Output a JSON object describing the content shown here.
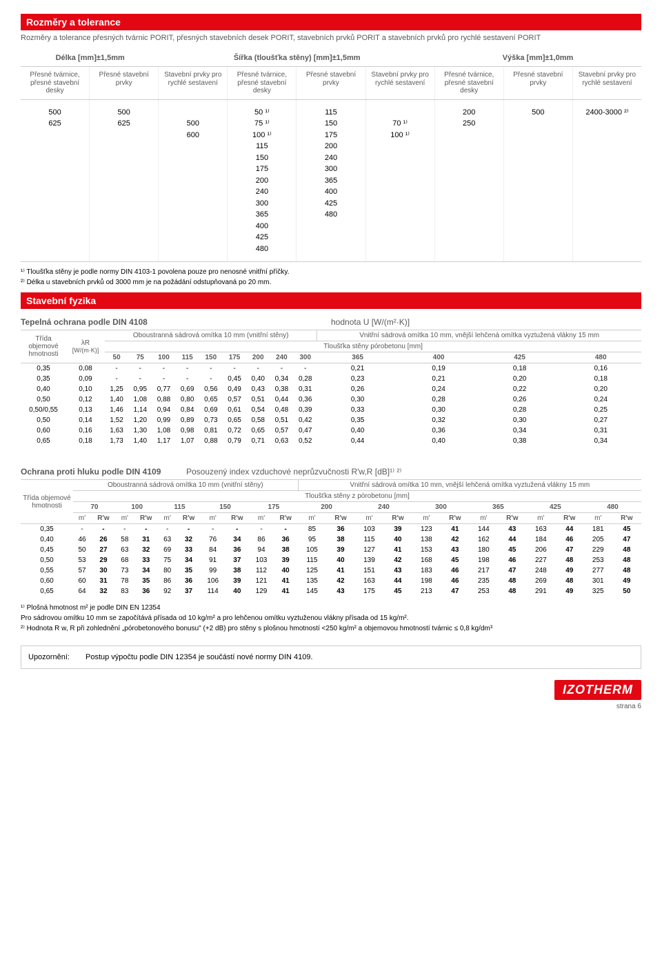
{
  "section1": {
    "title": "Rozměry a tolerance",
    "intro": "Rozměry a tolerance přesných tvárnic PORIT, přesných stavebních desek PORIT, stavebních prvků PORIT a stavebních prvků pro rychlé sestavení PORIT",
    "dim_headers": {
      "c0": "Délka\n[mm]±1,5mm",
      "c1": "Šířka (tloušťka stěny)\n[mm]±1,5mm",
      "c2": "Výška\n[mm]±1,0mm"
    },
    "sub_headers": [
      "Přesné tvár­nice, přesné stavební desky",
      "Přesné stavební prvky",
      "Stavební prvky pro rychlé sestavení",
      "Přesné tvár­nice, přesné stavební desky",
      "Přesné stavební prvky",
      "Stavební prvky pro rychlé sestavení",
      "Přesné tvár­nice, přesné stavební desky",
      "Přesné stavební prvky",
      "Stavební prvky pro rychlé sestavení"
    ],
    "data": {
      "c0": "500\n625",
      "c1": "500\n625",
      "c2": "\n500\n600",
      "c3": "50 ¹⁾\n75 ¹⁾\n100 ¹⁾\n115\n150\n175\n200\n240\n300\n365\n400\n425\n480",
      "c4": "115\n150\n175\n200\n240\n300\n365\n400\n425\n480",
      "c5": "\n70 ¹⁾\n100 ¹⁾",
      "c6": "200\n250",
      "c7": "500",
      "c8": "2400-3000 ²⁾"
    },
    "fn1": "¹⁾ Tloušťka stěny je podle normy DIN 4103-1 povolena pouze pro nenosné vnitřní příčky.",
    "fn2": "²⁾ Délka u stavebních prvků od 3000 mm je na požádání odstupňovaná po 20 mm."
  },
  "section2": {
    "title": "Stavební fyzika",
    "thermal_title": "Tepelná ochrana podle DIN 4108",
    "thermal_u": "hodnota U [W/(m²·K)]",
    "left_top": "Třída objemové hmotnosti",
    "lambda": "λR",
    "lambda_unit": "[W/(m·K)]",
    "th_sub1": "Oboustranná sádrová omítka 10 mm (vnitřní stěny)",
    "th_sub2": "Vnitřní sádrová omítka 10 mm, vnější lehčená omítka vyztužená vlákny 15 mm",
    "th_mid": "Tloušťka stěny pórobetonu  [mm]",
    "cols": [
      "50",
      "75",
      "100",
      "115",
      "150",
      "175",
      "200",
      "240",
      "300",
      "365",
      "400",
      "425",
      "480"
    ],
    "rows": [
      {
        "t": "0,35",
        "l": "0,08",
        "v": [
          "-",
          "-",
          "-",
          "-",
          "-",
          "-",
          "-",
          "-",
          "-",
          "0,21",
          "0,19",
          "0,18",
          "0,16"
        ]
      },
      {
        "t": "0,35",
        "l": "0,09",
        "v": [
          "-",
          "-",
          "-",
          "-",
          "-",
          "0,45",
          "0,40",
          "0,34",
          "0,28",
          "0,23",
          "0,21",
          "0,20",
          "0,18"
        ]
      },
      {
        "t": "0,40",
        "l": "0,10",
        "v": [
          "1,25",
          "0,95",
          "0,77",
          "0,69",
          "0,56",
          "0,49",
          "0,43",
          "0,38",
          "0,31",
          "0,26",
          "0,24",
          "0,22",
          "0,20"
        ]
      },
      {
        "t": "0,50",
        "l": "0,12",
        "v": [
          "1,40",
          "1,08",
          "0,88",
          "0,80",
          "0,65",
          "0,57",
          "0,51",
          "0,44",
          "0,36",
          "0,30",
          "0,28",
          "0,26",
          "0,24"
        ]
      },
      {
        "t": "0,50/0,55",
        "l": "0,13",
        "v": [
          "1,46",
          "1,14",
          "0,94",
          "0,84",
          "0,69",
          "0,61",
          "0,54",
          "0,48",
          "0,39",
          "0,33",
          "0,30",
          "0,28",
          "0,25"
        ]
      },
      {
        "t": "0,50",
        "l": "0,14",
        "v": [
          "1,52",
          "1,20",
          "0,99",
          "0,89",
          "0,73",
          "0,65",
          "0,58",
          "0,51",
          "0,42",
          "0,35",
          "0,32",
          "0,30",
          "0,27"
        ]
      },
      {
        "t": "0,60",
        "l": "0,16",
        "v": [
          "1,63",
          "1,30",
          "1,08",
          "0,98",
          "0,81",
          "0,72",
          "0,65",
          "0,57",
          "0,47",
          "0,40",
          "0,36",
          "0,34",
          "0,31"
        ]
      },
      {
        "t": "0,65",
        "l": "0,18",
        "v": [
          "1,73",
          "1,40",
          "1,17",
          "1,07",
          "0,88",
          "0,79",
          "0,71",
          "0,63",
          "0,52",
          "0,44",
          "0,40",
          "0,38",
          "0,34"
        ]
      }
    ]
  },
  "section3": {
    "sound_title": "Ochrana proti hluku podle DIN 4109",
    "sound_index": "Posouzený index vzduchové neprůzvučnosti R'w,R [dB]¹⁾ ²⁾",
    "sub1": "Oboustranná sádrová omítka 10 mm (vnitřní stěny)",
    "sub2": "Vnitřní sádrová omítka 10 mm, vnější lehčená omítka vyztužená vlákny 15 mm",
    "mid": "Tloušťka stěny z pórobetonu  [mm]",
    "left": "Třída objemové hmotnosti",
    "cols": [
      "70",
      "100",
      "115",
      "150",
      "175",
      "200",
      "240",
      "300",
      "365",
      "425",
      "480"
    ],
    "mr": "m'",
    "rw": "R'w",
    "rows": [
      {
        "t": "0,35",
        "v": [
          "-",
          "-",
          "-",
          "-",
          "-",
          "-",
          "-",
          "-",
          "-",
          "-",
          "85",
          "36",
          "103",
          "39",
          "123",
          "41",
          "144",
          "43",
          "163",
          "44",
          "181",
          "45"
        ]
      },
      {
        "t": "0,40",
        "v": [
          "46",
          "26",
          "58",
          "31",
          "63",
          "32",
          "76",
          "34",
          "86",
          "36",
          "95",
          "38",
          "115",
          "40",
          "138",
          "42",
          "162",
          "44",
          "184",
          "46",
          "205",
          "47"
        ]
      },
      {
        "t": "0,45",
        "v": [
          "50",
          "27",
          "63",
          "32",
          "69",
          "33",
          "84",
          "36",
          "94",
          "38",
          "105",
          "39",
          "127",
          "41",
          "153",
          "43",
          "180",
          "45",
          "206",
          "47",
          "229",
          "48"
        ]
      },
      {
        "t": "0,50",
        "v": [
          "53",
          "29",
          "68",
          "33",
          "75",
          "34",
          "91",
          "37",
          "103",
          "39",
          "115",
          "40",
          "139",
          "42",
          "168",
          "45",
          "198",
          "46",
          "227",
          "48",
          "253",
          "48"
        ]
      },
      {
        "t": "0,55",
        "v": [
          "57",
          "30",
          "73",
          "34",
          "80",
          "35",
          "99",
          "38",
          "112",
          "40",
          "125",
          "41",
          "151",
          "43",
          "183",
          "46",
          "217",
          "47",
          "248",
          "49",
          "277",
          "48"
        ]
      },
      {
        "t": "0,60",
        "v": [
          "60",
          "31",
          "78",
          "35",
          "86",
          "36",
          "106",
          "39",
          "121",
          "41",
          "135",
          "42",
          "163",
          "44",
          "198",
          "46",
          "235",
          "48",
          "269",
          "48",
          "301",
          "49"
        ]
      },
      {
        "t": "0,65",
        "v": [
          "64",
          "32",
          "83",
          "36",
          "92",
          "37",
          "114",
          "40",
          "129",
          "41",
          "145",
          "43",
          "175",
          "45",
          "213",
          "47",
          "253",
          "48",
          "291",
          "49",
          "325",
          "50"
        ]
      }
    ],
    "fn1": "¹⁾ Plošná hmotnost m² je podle DIN EN 12354",
    "fn2": "   Pro sádrovou omítku 10 mm se započítává  přísada od 10 kg/m² a pro lehčenou omítku vyztuženou vlákny přísada od 15 kg/m².",
    "fn3": "²⁾ Hodnota R w, R  při zohlednění „pórobetonového bonusu\" (+2 dB) pro stěny s plošnou hmotností <250 kg/m² a objemovou hmotností tvárnic ≤ 0,8 kg/dm³"
  },
  "notice": {
    "label": "Upozornění:",
    "text": "Postup výpočtu podle DIN 12354 je součástí nové normy DIN 4109."
  },
  "logo": "IZOTHERM",
  "page": "strana 6"
}
